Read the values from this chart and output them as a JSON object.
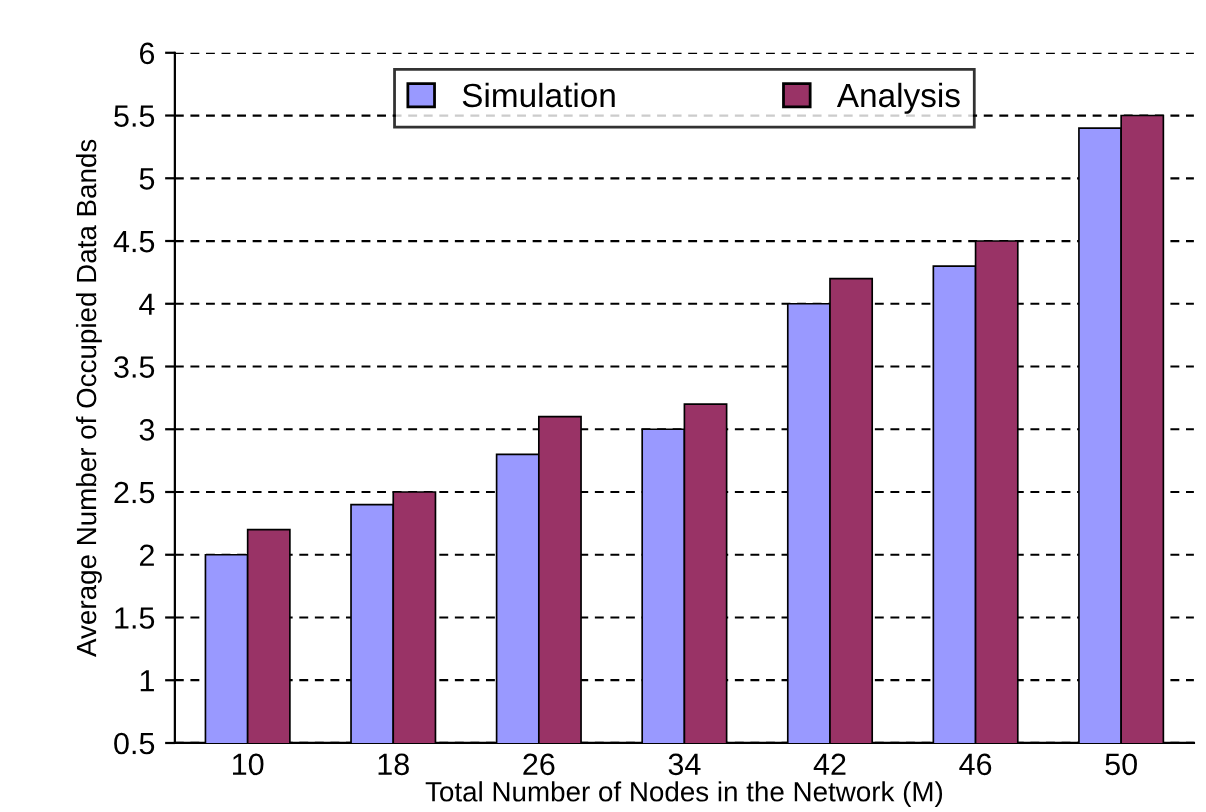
{
  "chart_data": {
    "type": "bar",
    "xlabel": "Total Number of Nodes in the Network (M)",
    "ylabel": "Average Number of Occupied Data Bands",
    "categories": [
      "10",
      "18",
      "26",
      "34",
      "42",
      "46",
      "50"
    ],
    "series": [
      {
        "name": "Simulation",
        "color": "#9999ff",
        "values": [
          2,
          2.4,
          2.8,
          3,
          4,
          4.3,
          5.4
        ]
      },
      {
        "name": "Analysis",
        "color": "#993366",
        "values": [
          2.2,
          2.5,
          3.1,
          3.2,
          4.2,
          4.5,
          5.5
        ]
      }
    ],
    "ylim": [
      0.5,
      6
    ],
    "yticks": [
      0.5,
      1,
      1.5,
      2,
      2.5,
      3,
      3.5,
      4,
      4.5,
      5,
      5.5,
      6
    ],
    "grid": "y",
    "legend": "top"
  }
}
